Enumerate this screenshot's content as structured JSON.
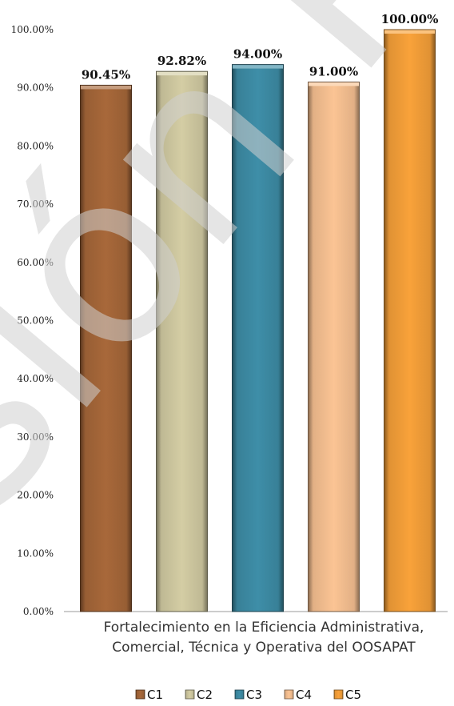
{
  "chart_data": {
    "type": "bar",
    "categories": [
      "C1",
      "C2",
      "C3",
      "C4",
      "C5"
    ],
    "values": [
      90.45,
      92.82,
      94.0,
      91.0,
      100.0
    ],
    "data_labels": [
      "90.45%",
      "92.82%",
      "94.00%",
      "91.00%",
      "100.00%"
    ],
    "xlabel_lines": [
      "Fortalecimiento en la Eficiencia Administrativa,",
      "Comercial, Técnica y Operativa del OOSAPAT"
    ],
    "ylabel": "",
    "ylim": [
      0,
      100
    ],
    "yticks": [
      0,
      10,
      20,
      30,
      40,
      50,
      60,
      70,
      80,
      90,
      100
    ],
    "ytick_labels": [
      "0.00%",
      "10.00%",
      "20.00%",
      "30.00%",
      "40.00%",
      "50.00%",
      "60.00%",
      "70.00%",
      "80.00%",
      "90.00%",
      "100.00%"
    ],
    "grid": false,
    "legend": {
      "position": "bottom",
      "entries": [
        "C1",
        "C2",
        "C3",
        "C4",
        "C5"
      ]
    },
    "colors": [
      "#a8683a",
      "#d4cda4",
      "#3e8ea8",
      "#fbc494",
      "#f9a23a"
    ]
  },
  "watermark_text": "sión Pú"
}
